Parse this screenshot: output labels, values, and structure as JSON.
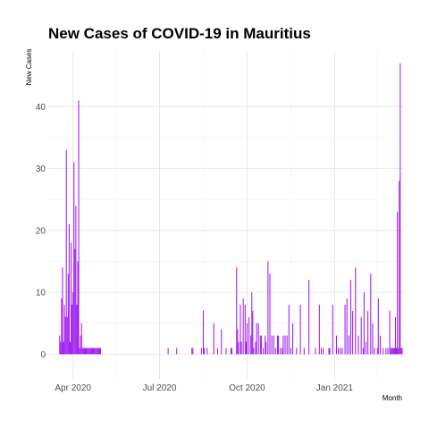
{
  "chart_data": {
    "type": "bar",
    "title": "New Cases of COVID-19 in Mauritius",
    "xlabel": "Month",
    "ylabel": "New Cases",
    "bar_color": "#a020f0",
    "grid": true,
    "x_range": [
      "2020-03-06",
      "2021-03-14"
    ],
    "ylim": [
      -4,
      49
    ],
    "y_ticks": [
      0,
      10,
      20,
      30,
      40
    ],
    "x_ticks": [
      {
        "date": "2020-04-01",
        "label": "Apr 2020"
      },
      {
        "date": "2020-07-01",
        "label": "Jul 2020"
      },
      {
        "date": "2020-10-01",
        "label": "Oct 2020"
      },
      {
        "date": "2021-01-01",
        "label": "Jan 2021"
      }
    ],
    "series": [
      {
        "x": [
          "2020-03-18",
          "2020-03-19",
          "2020-03-20",
          "2020-03-21",
          "2020-03-22",
          "2020-03-23",
          "2020-03-24",
          "2020-03-25",
          "2020-03-26",
          "2020-03-27",
          "2020-03-28",
          "2020-03-29",
          "2020-03-30",
          "2020-03-31",
          "2020-04-01",
          "2020-04-02",
          "2020-04-03",
          "2020-04-04",
          "2020-04-05",
          "2020-04-06",
          "2020-04-07",
          "2020-04-08",
          "2020-04-09",
          "2020-04-10",
          "2020-04-11",
          "2020-04-12",
          "2020-04-13",
          "2020-04-14",
          "2020-04-15",
          "2020-04-16",
          "2020-04-17",
          "2020-04-18",
          "2020-04-19",
          "2020-04-20",
          "2020-04-21",
          "2020-04-22",
          "2020-04-23",
          "2020-04-24",
          "2020-04-25",
          "2020-04-26",
          "2020-04-27",
          "2020-04-28",
          "2020-04-29",
          "2020-04-30",
          "2020-07-10",
          "2020-07-19",
          "2020-08-04",
          "2020-08-05",
          "2020-08-14",
          "2020-08-16",
          "2020-08-17",
          "2020-08-20",
          "2020-08-27",
          "2020-08-31",
          "2020-09-04",
          "2020-09-09",
          "2020-09-14",
          "2020-09-15",
          "2020-09-20",
          "2020-09-21",
          "2020-09-22",
          "2020-09-24",
          "2020-09-25",
          "2020-09-27",
          "2020-09-29",
          "2020-09-30",
          "2020-10-01",
          "2020-10-03",
          "2020-10-05",
          "2020-10-06",
          "2020-10-07",
          "2020-10-08",
          "2020-10-10",
          "2020-10-11",
          "2020-10-13",
          "2020-10-15",
          "2020-10-16",
          "2020-10-18",
          "2020-10-20",
          "2020-10-21",
          "2020-10-23",
          "2020-10-25",
          "2020-10-27",
          "2020-10-29",
          "2020-10-31",
          "2020-11-02",
          "2020-11-03",
          "2020-11-05",
          "2020-11-07",
          "2020-11-08",
          "2020-11-10",
          "2020-11-12",
          "2020-11-14",
          "2020-11-16",
          "2020-11-18",
          "2020-11-22",
          "2020-11-26",
          "2020-11-30",
          "2020-12-05",
          "2020-12-12",
          "2020-12-16",
          "2020-12-18",
          "2020-12-20",
          "2020-12-26",
          "2020-12-27",
          "2020-12-30",
          "2021-01-03",
          "2021-01-05",
          "2021-01-07",
          "2021-01-09",
          "2021-01-12",
          "2021-01-14",
          "2021-01-16",
          "2021-01-18",
          "2021-01-20",
          "2021-01-23",
          "2021-01-26",
          "2021-01-29",
          "2021-01-31",
          "2021-02-01",
          "2021-02-03",
          "2021-02-05",
          "2021-02-08",
          "2021-02-10",
          "2021-02-12",
          "2021-02-15",
          "2021-02-16",
          "2021-02-18",
          "2021-02-21",
          "2021-02-24",
          "2021-02-26",
          "2021-02-28",
          "2021-03-01",
          "2021-03-02",
          "2021-03-03",
          "2021-03-04",
          "2021-03-05",
          "2021-03-06",
          "2021-03-07",
          "2021-03-08",
          "2021-03-09",
          "2021-03-10",
          "2021-03-11",
          "2021-03-12",
          "2021-03-13"
        ],
        "y": [
          3,
          2,
          9,
          14,
          2,
          8,
          6,
          33,
          6,
          13,
          21,
          2,
          18,
          8,
          10,
          31,
          17,
          24,
          8,
          15,
          41,
          1,
          3,
          5,
          1,
          1,
          1,
          1,
          1,
          1,
          1,
          1,
          1,
          1,
          1,
          1,
          1,
          1,
          1,
          1,
          1,
          1,
          1,
          1,
          1,
          1,
          1,
          1,
          1,
          7,
          1,
          1,
          5,
          1,
          4,
          1,
          1,
          1,
          14,
          4,
          2,
          8,
          2,
          9,
          8,
          2,
          5,
          6,
          3,
          10,
          7,
          1,
          2,
          5,
          5,
          3,
          3,
          1,
          3,
          2,
          15,
          13,
          3,
          3,
          1,
          3,
          3,
          1,
          1,
          3,
          3,
          3,
          8,
          1,
          5,
          1,
          8,
          1,
          12,
          1,
          8,
          1,
          1,
          1,
          1,
          8,
          3,
          1,
          1,
          1,
          8,
          9,
          3,
          12,
          7,
          14,
          3,
          6,
          1,
          10,
          2,
          7,
          13,
          5,
          1,
          1,
          9,
          3,
          1,
          1,
          1,
          7,
          1,
          1,
          1,
          1,
          1,
          6,
          1,
          23,
          1,
          28,
          47,
          1,
          1
        ]
      }
    ]
  }
}
